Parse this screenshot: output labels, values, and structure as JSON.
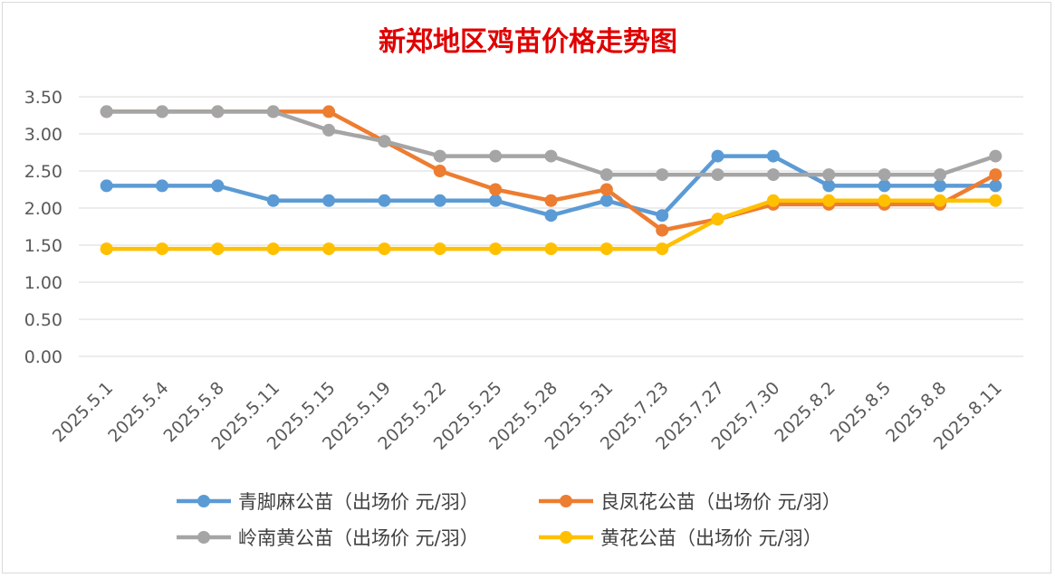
{
  "chart_data": {
    "type": "line",
    "title": "新郑地区鸡苗价格走势图",
    "title_color": "#e00000",
    "categories": [
      "2025.5.1",
      "2025.5.4",
      "2025.5.8",
      "2025.5.11",
      "2025.5.15",
      "2025.5.19",
      "2025.5.22",
      "2025.5.25",
      "2025.5.28",
      "2025.5.31",
      "2025.7.23",
      "2025.7.27",
      "2025.7.30",
      "2025.8.2",
      "2025.8.5",
      "2025.8.8",
      "2025.8.11"
    ],
    "ylim": [
      0,
      3.5
    ],
    "yticks": [
      "0.00",
      "0.50",
      "1.00",
      "1.50",
      "2.00",
      "2.50",
      "3.00",
      "3.50"
    ],
    "grid": true,
    "legend_position": "bottom",
    "series": [
      {
        "name": "青脚麻公苗（出场价 元/羽）",
        "color": "#5b9bd5",
        "values": [
          2.3,
          2.3,
          2.3,
          2.1,
          2.1,
          2.1,
          2.1,
          2.1,
          1.9,
          2.1,
          1.9,
          2.7,
          2.7,
          2.3,
          2.3,
          2.3,
          2.3
        ]
      },
      {
        "name": "良凤花公苗（出场价 元/羽）",
        "color": "#ed7d31",
        "values": [
          3.3,
          3.3,
          3.3,
          3.3,
          3.3,
          2.9,
          2.5,
          2.25,
          2.1,
          2.25,
          1.7,
          1.85,
          2.05,
          2.05,
          2.05,
          2.05,
          2.45
        ]
      },
      {
        "name": "岭南黄公苗（出场价 元/羽）",
        "color": "#a5a5a5",
        "values": [
          3.3,
          3.3,
          3.3,
          3.3,
          3.05,
          2.9,
          2.7,
          2.7,
          2.7,
          2.45,
          2.45,
          2.45,
          2.45,
          2.45,
          2.45,
          2.45,
          2.7
        ]
      },
      {
        "name": "黄花公苗（出场价 元/羽）",
        "color": "#ffc000",
        "values": [
          1.45,
          1.45,
          1.45,
          1.45,
          1.45,
          1.45,
          1.45,
          1.45,
          1.45,
          1.45,
          1.45,
          1.85,
          2.1,
          2.1,
          2.1,
          2.1,
          2.1
        ]
      }
    ]
  }
}
